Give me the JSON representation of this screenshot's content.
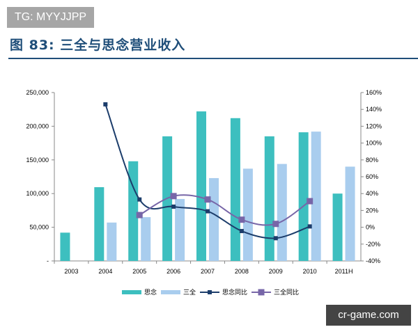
{
  "watermark_top": "TG: MYYJJPP",
  "watermark_bottom": "cr-game.com",
  "figure_title": "图 83:  三全与思念营业收入",
  "chart_data": {
    "type": "bar+line",
    "categories": [
      "2003",
      "2004",
      "2005",
      "2006",
      "2007",
      "2008",
      "2009",
      "2010",
      "2011H"
    ],
    "left_axis": {
      "range": [
        0,
        250000
      ],
      "ticks": [
        "-",
        "50,000",
        "100,000",
        "150,000",
        "200,000",
        "250,000"
      ]
    },
    "right_axis": {
      "range": [
        -40,
        160
      ],
      "ticks": [
        "-40%",
        "-20%",
        "0%",
        "20%",
        "40%",
        "60%",
        "80%",
        "100%",
        "120%",
        "140%",
        "160%"
      ]
    },
    "series": [
      {
        "name": "思念",
        "type": "bar",
        "axis": "left",
        "color": "#3dbfbf",
        "values": [
          42000,
          109500,
          148000,
          185000,
          222000,
          212000,
          185000,
          191000,
          100000
        ]
      },
      {
        "name": "三全",
        "type": "bar",
        "axis": "left",
        "color": "#a9cdee",
        "values": [
          null,
          57000,
          65000,
          92000,
          123000,
          137000,
          144000,
          192000,
          140000
        ]
      },
      {
        "name": "思念同比",
        "type": "line",
        "axis": "right",
        "color": "#1c3d6b",
        "values": [
          null,
          146,
          33,
          24.5,
          19,
          -4.5,
          -13,
          1,
          null
        ]
      },
      {
        "name": "三全同比",
        "type": "line",
        "axis": "right",
        "color": "#7766a8",
        "values": [
          null,
          null,
          14.5,
          37,
          33,
          9,
          4,
          31,
          null
        ]
      }
    ],
    "legend_position": "bottom",
    "grid": false
  }
}
